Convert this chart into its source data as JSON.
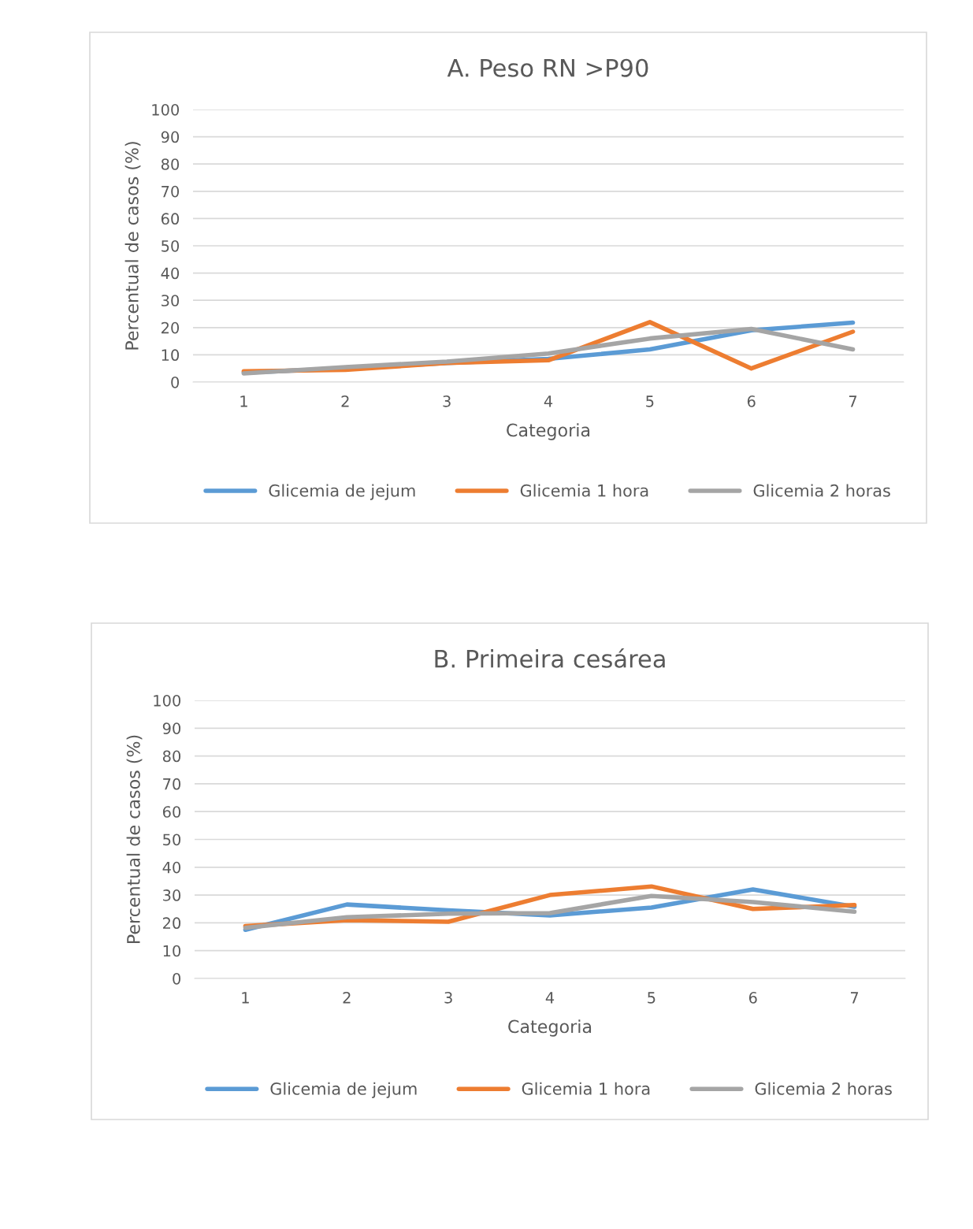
{
  "chart_data": [
    {
      "type": "line",
      "title": "A. Peso RN >P90",
      "xlabel": "Categoria",
      "ylabel": "Percentual de casos (%)",
      "categories": [
        "1",
        "2",
        "3",
        "4",
        "5",
        "6",
        "7"
      ],
      "series": [
        {
          "name": "Glicemia de jejum",
          "color": "#5b9bd5",
          "values": [
            3.5,
            5,
            7,
            8.5,
            12,
            19,
            21.8
          ]
        },
        {
          "name": "Glicemia 1 hora",
          "color": "#ed7d31",
          "values": [
            4,
            4.5,
            7,
            8,
            22,
            5,
            18.5
          ]
        },
        {
          "name": "Glicemia 2 horas",
          "color": "#a5a5a5",
          "values": [
            3.2,
            5.5,
            7.5,
            10.5,
            16,
            19.5,
            12
          ]
        }
      ],
      "ylim": [
        0,
        100
      ],
      "yticks": [
        0,
        10,
        20,
        30,
        40,
        50,
        60,
        70,
        80,
        90,
        100
      ],
      "grid": "y",
      "legend": "bottom",
      "marker": "none",
      "line_style": "solid"
    },
    {
      "type": "line",
      "title": "B. Primeira cesárea",
      "xlabel": "Categoria",
      "ylabel": "Percentual de casos (%)",
      "categories": [
        "1",
        "2",
        "3",
        "4",
        "5",
        "6",
        "7"
      ],
      "series": [
        {
          "name": "Glicemia de jejum",
          "color": "#5b9bd5",
          "values": [
            17.5,
            26.6,
            24.5,
            22.7,
            25.5,
            32,
            25.8
          ]
        },
        {
          "name": "Glicemia 1 hora",
          "color": "#ed7d31",
          "values": [
            18.8,
            21,
            20.4,
            30,
            33.1,
            25,
            26.4
          ]
        },
        {
          "name": "Glicemia 2 horas",
          "color": "#a5a5a5",
          "values": [
            18.2,
            22,
            23.3,
            23.5,
            29.7,
            27.5,
            24
          ]
        }
      ],
      "ylim": [
        0,
        100
      ],
      "yticks": [
        0,
        10,
        20,
        30,
        40,
        50,
        60,
        70,
        80,
        90,
        100
      ],
      "grid": "y",
      "legend": "bottom",
      "marker": "none",
      "line_style": "solid"
    }
  ]
}
